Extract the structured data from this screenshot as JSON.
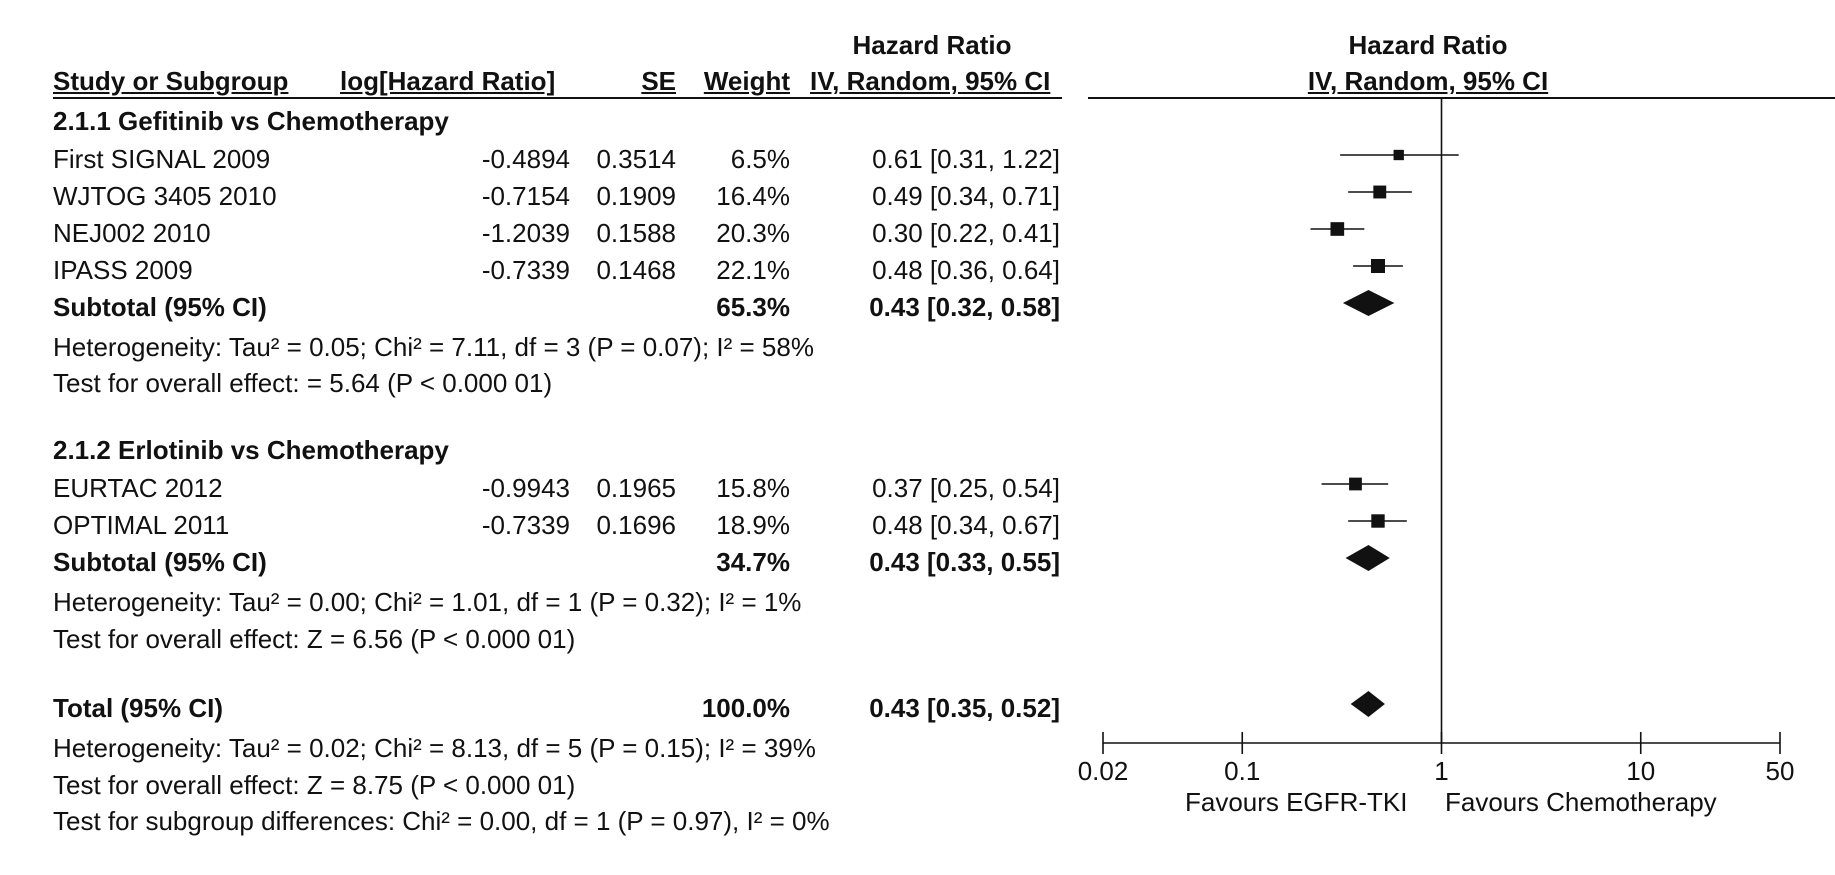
{
  "header": {
    "hr_top_left": "Hazard Ratio",
    "hr_top_right": "Hazard Ratio",
    "col_study": "Study or Subgroup",
    "col_loghr": "log[Hazard Ratio]",
    "col_se": "SE",
    "col_weight": "Weight",
    "col_ci_left": "IV, Random, 95% CI",
    "col_ci_right": "IV, Random, 95% CI"
  },
  "groups": [
    {
      "title": "2.1.1 Gefitinib vs Chemotherapy",
      "studies": [
        {
          "name": "First SIGNAL  2009",
          "loghr": "-0.4894",
          "se": "0.3514",
          "weight": "6.5%",
          "ci": "0.61 [0.31, 1.22]"
        },
        {
          "name": "WJTOG 3405 2010",
          "loghr": "-0.7154",
          "se": "0.1909",
          "weight": "16.4%",
          "ci": "0.49 [0.34, 0.71]"
        },
        {
          "name": "NEJ002 2010",
          "loghr": "-1.2039",
          "se": "0.1588",
          "weight": "20.3%",
          "ci": "0.30 [0.22, 0.41]"
        },
        {
          "name": "IPASS 2009",
          "loghr": "-0.7339",
          "se": "0.1468",
          "weight": "22.1%",
          "ci": "0.48 [0.36, 0.64]"
        }
      ],
      "subtotal": {
        "label": "Subtotal (95% CI)",
        "weight": "65.3%",
        "ci": "0.43 [0.32, 0.58]"
      },
      "heterogeneity": "Heterogeneity: Tau² = 0.05; Chi² = 7.11, df = 3 (P = 0.07); I² = 58%",
      "overall": "Test for overall effect:    = 5.64 (P < 0.000 01)"
    },
    {
      "title": "2.1.2 Erlotinib vs Chemotherapy",
      "studies": [
        {
          "name": "EURTAC 2012",
          "loghr": "-0.9943",
          "se": "0.1965",
          "weight": "15.8%",
          "ci": "0.37 [0.25, 0.54]"
        },
        {
          "name": "OPTIMAL 2011",
          "loghr": "-0.7339",
          "se": "0.1696",
          "weight": "18.9%",
          "ci": "0.48 [0.34, 0.67]"
        }
      ],
      "subtotal": {
        "label": "Subtotal (95% CI)",
        "weight": "34.7%",
        "ci": "0.43 [0.33, 0.55]"
      },
      "heterogeneity": "Heterogeneity: Tau² = 0.00; Chi² = 1.01, df = 1 (P = 0.32); I² = 1%",
      "overall": "Test for overall effect: Z = 6.56 (P < 0.000 01)"
    }
  ],
  "total": {
    "label": "Total (95% CI)",
    "weight": "100.0%",
    "ci": "0.43 [0.35, 0.52]",
    "heterogeneity": "Heterogeneity: Tau² = 0.02; Chi² = 8.13, df = 5 (P = 0.15); I² = 39%",
    "overall": "Test for overall effect: Z = 8.75 (P < 0.000 01)",
    "subgroup": "Test for subgroup differences: Chi² = 0.00, df = 1 (P = 0.97), I² = 0%"
  },
  "axis": {
    "favours_left": "Favours EGFR-TKI",
    "favours_right": "Favours Chemotherapy"
  },
  "chart_data": {
    "type": "forest",
    "xscale": "log",
    "xlim": [
      0.02,
      50
    ],
    "ticks": [
      0.02,
      0.1,
      1,
      10,
      50
    ],
    "tick_labels": [
      "0.02",
      "0.1",
      "1",
      "10",
      "50"
    ],
    "reference_line": 1,
    "colors": {
      "ink": "#111111"
    },
    "studies": [
      {
        "name": "First SIGNAL  2009",
        "hr": 0.61,
        "lo": 0.31,
        "hi": 1.22,
        "weight": 6.5
      },
      {
        "name": "WJTOG 3405 2010",
        "hr": 0.49,
        "lo": 0.34,
        "hi": 0.71,
        "weight": 16.4
      },
      {
        "name": "NEJ002 2010",
        "hr": 0.3,
        "lo": 0.22,
        "hi": 0.41,
        "weight": 20.3
      },
      {
        "name": "IPASS 2009",
        "hr": 0.48,
        "lo": 0.36,
        "hi": 0.64,
        "weight": 22.1
      },
      {
        "name": "EURTAC 2012",
        "hr": 0.37,
        "lo": 0.25,
        "hi": 0.54,
        "weight": 15.8
      },
      {
        "name": "OPTIMAL 2011",
        "hr": 0.48,
        "lo": 0.34,
        "hi": 0.67,
        "weight": 18.9
      }
    ],
    "pooled": [
      {
        "name": "Subtotal 2.1.1",
        "hr": 0.43,
        "lo": 0.32,
        "hi": 0.58
      },
      {
        "name": "Subtotal 2.1.2",
        "hr": 0.43,
        "lo": 0.33,
        "hi": 0.55
      },
      {
        "name": "Total",
        "hr": 0.43,
        "lo": 0.35,
        "hi": 0.52
      }
    ]
  }
}
